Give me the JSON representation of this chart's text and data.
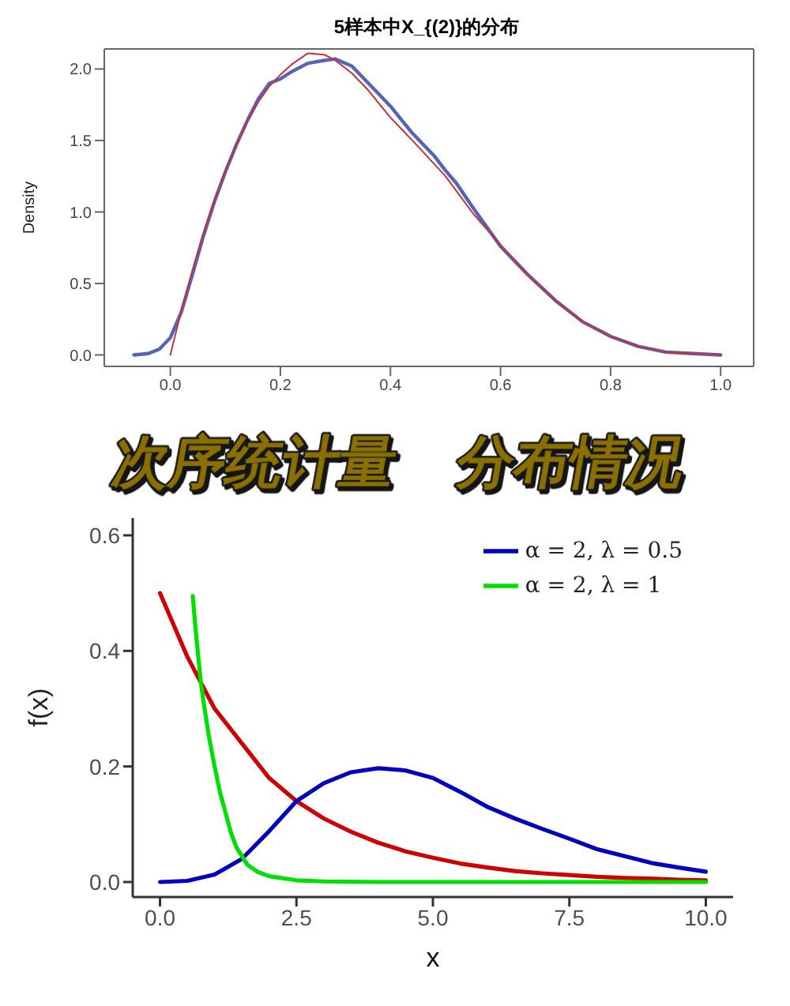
{
  "chart_data": [
    {
      "type": "line",
      "title": "5样本中X_{(2)}的分布",
      "ylabel": "Density",
      "xlim": [
        -0.12,
        1.06
      ],
      "ylim": [
        -0.08,
        2.14
      ],
      "xticks": [
        {
          "value": 0,
          "label": "0.0"
        },
        0.2,
        0.4,
        0.6,
        0.8,
        {
          "value": 1,
          "label": "1.0"
        }
      ],
      "yticks": [
        {
          "value": 0,
          "label": "0.0"
        },
        0.5,
        {
          "value": 1,
          "label": "1.0"
        },
        1.5,
        {
          "value": 2,
          "label": "2.0"
        }
      ],
      "marker": "none",
      "series": [
        {
          "color": "#5563b8",
          "x": [
            -0.066,
            -0.04,
            -0.02,
            0,
            0.02,
            0.04,
            0.06,
            0.08,
            0.1,
            0.12,
            0.14,
            0.16,
            0.18,
            0.2,
            0.22,
            0.25,
            0.28,
            0.3,
            0.33,
            0.36,
            0.4,
            0.44,
            0.48,
            0.5,
            0.52,
            0.55,
            0.6,
            0.65,
            0.7,
            0.75,
            0.8,
            0.85,
            0.9,
            0.95,
            1.0
          ],
          "values": [
            0,
            0.01,
            0.04,
            0.12,
            0.3,
            0.56,
            0.83,
            1.07,
            1.28,
            1.47,
            1.64,
            1.79,
            1.9,
            1.93,
            1.98,
            2.04,
            2.06,
            2.07,
            2.02,
            1.9,
            1.74,
            1.55,
            1.39,
            1.29,
            1.2,
            1.03,
            0.76,
            0.56,
            0.38,
            0.23,
            0.13,
            0.06,
            0.02,
            0.01,
            0
          ]
        },
        {
          "color": "#c8303a",
          "x": [
            0,
            0.02,
            0.04,
            0.06,
            0.08,
            0.1,
            0.12,
            0.14,
            0.16,
            0.18,
            0.2,
            0.22,
            0.25,
            0.28,
            0.3,
            0.33,
            0.36,
            0.4,
            0.44,
            0.5,
            0.55,
            0.6,
            0.65,
            0.7,
            0.75,
            0.8,
            0.85,
            0.9,
            0.95,
            1.0
          ],
          "values": [
            0,
            0.31,
            0.59,
            0.85,
            1.08,
            1.29,
            1.47,
            1.63,
            1.77,
            1.88,
            1.96,
            2.03,
            2.11,
            2.1,
            2.06,
            1.97,
            1.85,
            1.66,
            1.5,
            1.25,
            0.99,
            0.77,
            0.56,
            0.38,
            0.23,
            0.13,
            0.06,
            0.02,
            0.01,
            0
          ]
        }
      ]
    },
    {
      "type": "other",
      "annotations": [
        "次序统计量",
        "分布情况"
      ]
    },
    {
      "type": "line",
      "xlabel": "x",
      "ylabel": "f(x)",
      "xlim": [
        -0.5,
        10.5
      ],
      "ylim": [
        -0.026,
        0.63
      ],
      "xticks": [
        {
          "value": 0,
          "label": "0.0"
        },
        2.5,
        {
          "value": 5,
          "label": "5.0"
        },
        7.5,
        {
          "value": 10,
          "label": "10.0"
        }
      ],
      "yticks": [
        {
          "value": 0,
          "label": "0.0"
        },
        0.2,
        0.4,
        0.6
      ],
      "marker": "none",
      "legend": "top right",
      "series": [
        {
          "color": "#d00000",
          "x": [
            0,
            0.5,
            1,
            1.5,
            2,
            2.5,
            3,
            3.5,
            4,
            4.5,
            5,
            5.5,
            6,
            6.5,
            7,
            7.5,
            8,
            8.5,
            9,
            9.5,
            10
          ],
          "values": [
            0.5,
            0.39,
            0.3,
            0.24,
            0.18,
            0.14,
            0.11,
            0.087,
            0.068,
            0.053,
            0.042,
            0.032,
            0.025,
            0.019,
            0.015,
            0.012,
            0.009,
            0.007,
            0.006,
            0.004,
            0.003
          ]
        },
        {
          "name": "α = 2, λ = 0.5",
          "color": "#0000c0",
          "x": [
            0,
            0.5,
            1,
            1.5,
            2,
            2.5,
            3,
            3.5,
            4,
            4.5,
            5,
            5.5,
            6,
            6.5,
            7,
            7.5,
            8,
            8.5,
            9,
            9.5,
            10
          ],
          "values": [
            0,
            0.002,
            0.013,
            0.04,
            0.088,
            0.14,
            0.171,
            0.19,
            0.197,
            0.193,
            0.18,
            0.156,
            0.13,
            0.11,
            0.092,
            0.075,
            0.057,
            0.045,
            0.033,
            0.025,
            0.018
          ]
        },
        {
          "name": "α = 2, λ = 1",
          "color": "#00e000",
          "x": [
            0.6,
            0.65,
            0.7,
            0.75,
            0.8,
            0.9,
            1,
            1.1,
            1.2,
            1.3,
            1.4,
            1.6,
            1.8,
            2,
            2.5,
            3,
            4,
            5,
            6,
            7,
            8,
            9,
            10
          ],
          "values": [
            0.495,
            0.44,
            0.39,
            0.345,
            0.31,
            0.25,
            0.2,
            0.155,
            0.12,
            0.085,
            0.06,
            0.03,
            0.017,
            0.01,
            0.003,
            0.001,
            0,
            0,
            0,
            0,
            0,
            0,
            0
          ]
        }
      ]
    }
  ]
}
